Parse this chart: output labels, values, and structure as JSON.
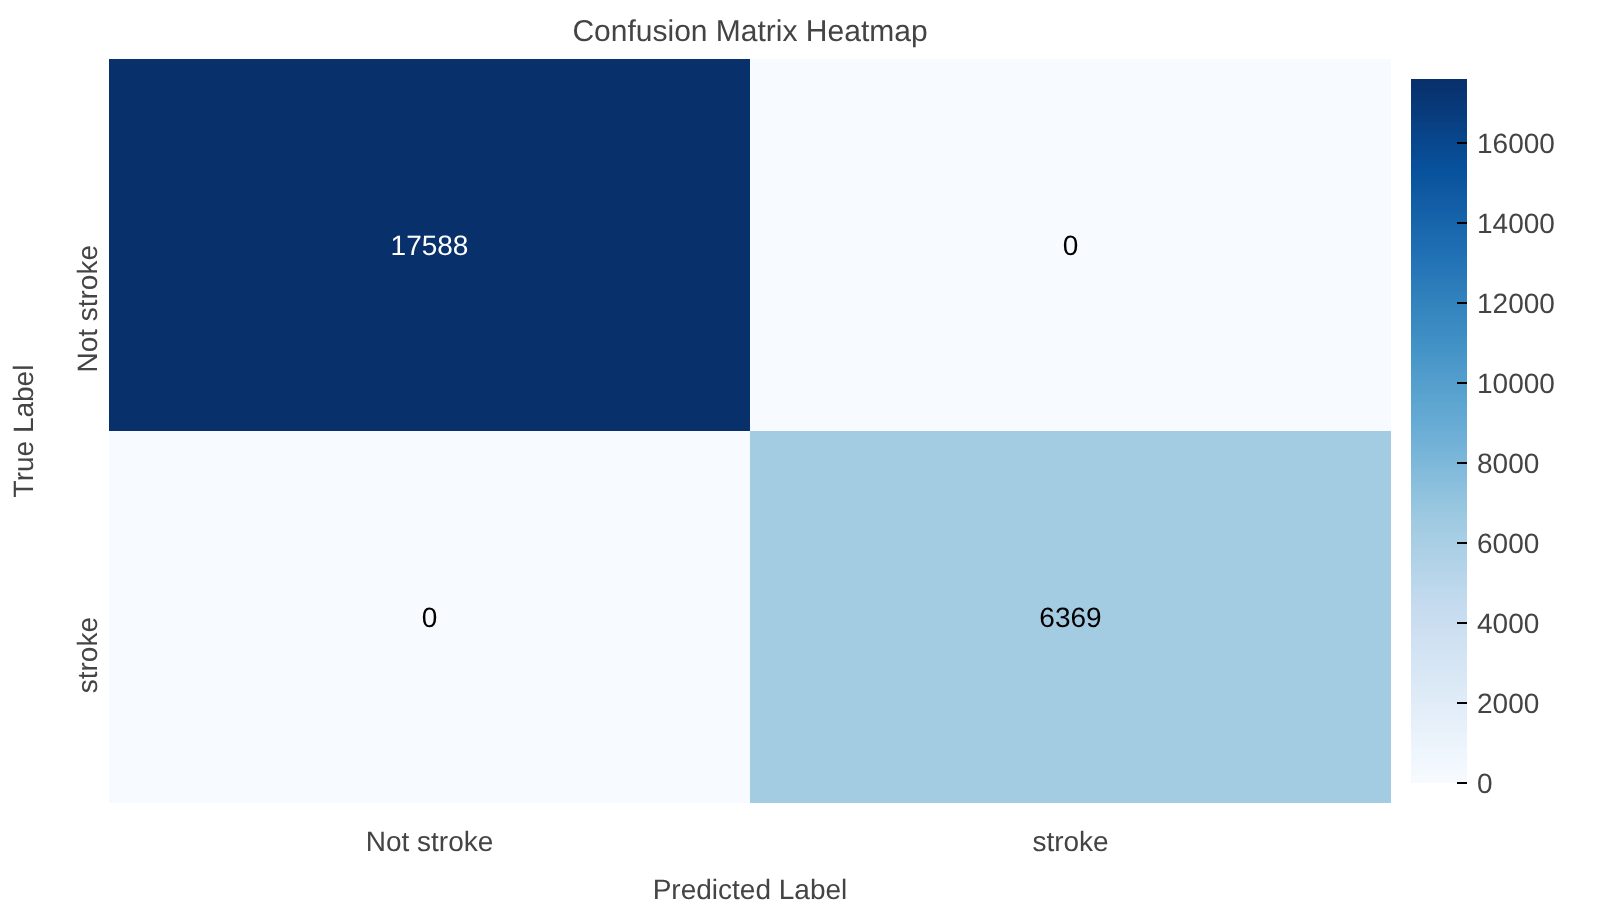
{
  "chart_data": {
    "type": "heatmap",
    "title": "Confusion Matrix Heatmap",
    "xlabel": "Predicted Label",
    "ylabel": "True Label",
    "categories": [
      "Not stroke",
      "stroke"
    ],
    "y_categories": [
      "Not stroke",
      "stroke"
    ],
    "cells": [
      [
        17588,
        0
      ],
      [
        0,
        6369
      ]
    ],
    "clim": [
      0,
      17588
    ],
    "cticks": [
      0,
      2000,
      4000,
      6000,
      8000,
      10000,
      12000,
      14000,
      16000
    ],
    "data_labels": true
  }
}
